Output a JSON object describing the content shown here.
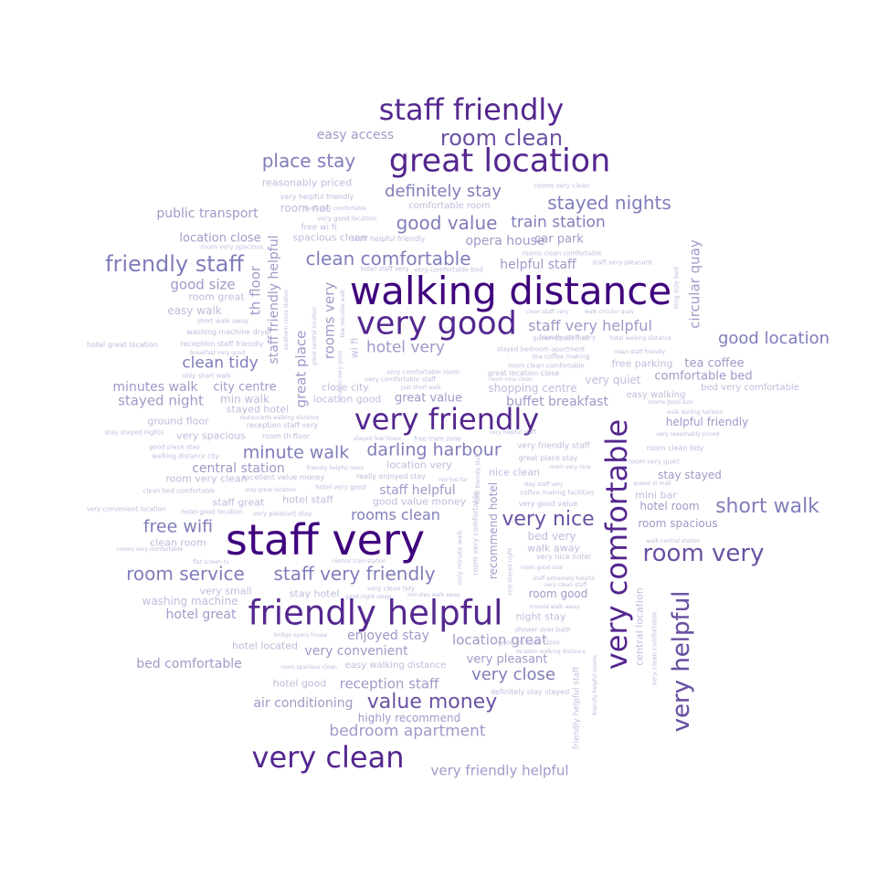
{
  "words": [
    {
      "text": "staff very",
      "weight": 1.0,
      "color": "#3f007d"
    },
    {
      "text": "walking distance",
      "weight": 0.92,
      "color": "#3f007d"
    },
    {
      "text": "friendly helpful",
      "weight": 0.8,
      "color": "#54278f"
    },
    {
      "text": "very good",
      "weight": 0.8,
      "color": "#54278f"
    },
    {
      "text": "great location",
      "weight": 0.78,
      "color": "#54278f"
    },
    {
      "text": "very comfortable",
      "weight": 0.77,
      "color": "#54278f"
    },
    {
      "text": "very clean",
      "weight": 0.72,
      "color": "#54278f"
    },
    {
      "text": "staff friendly",
      "weight": 0.72,
      "color": "#54278f"
    },
    {
      "text": "very friendly",
      "weight": 0.72,
      "color": "#54278f"
    },
    {
      "text": "very helpful",
      "weight": 0.62,
      "color": "#6a51a3"
    },
    {
      "text": "room very",
      "weight": 0.55,
      "color": "#6a51a3"
    },
    {
      "text": "room clean",
      "weight": 0.5,
      "color": "#6a51a3"
    },
    {
      "text": "value money",
      "weight": 0.47,
      "color": "#6a51a3"
    },
    {
      "text": "friendly staff",
      "weight": 0.45,
      "color": "#807dba"
    },
    {
      "text": "short walk",
      "weight": 0.42,
      "color": "#807dba"
    },
    {
      "text": "very nice",
      "weight": 0.42,
      "color": "#6a51a3"
    },
    {
      "text": "staff very friendly",
      "weight": 0.42,
      "color": "#807dba"
    },
    {
      "text": "good value",
      "weight": 0.41,
      "color": "#807dba"
    },
    {
      "text": "stayed nights",
      "weight": 0.41,
      "color": "#807dba"
    },
    {
      "text": "clean comfortable",
      "weight": 0.41,
      "color": "#807dba"
    },
    {
      "text": "room service",
      "weight": 0.39,
      "color": "#807dba"
    },
    {
      "text": "place stay",
      "weight": 0.39,
      "color": "#807dba"
    },
    {
      "text": "darling harbour",
      "weight": 0.39,
      "color": "#807dba"
    },
    {
      "text": "minute walk",
      "weight": 0.38,
      "color": "#807dba"
    },
    {
      "text": "definitely stay",
      "weight": 0.38,
      "color": "#807dba"
    },
    {
      "text": "good location",
      "weight": 0.38,
      "color": "#807dba"
    },
    {
      "text": "free wifi",
      "weight": 0.38,
      "color": "#807dba"
    },
    {
      "text": "very close",
      "weight": 0.36,
      "color": "#807dba"
    },
    {
      "text": "bedroom apartment",
      "weight": 0.36,
      "color": "#9e9ac8"
    },
    {
      "text": "hotel very",
      "weight": 0.35,
      "color": "#9e9ac8"
    },
    {
      "text": "staff very helpful",
      "weight": 0.35,
      "color": "#9e9ac8"
    },
    {
      "text": "train station",
      "weight": 0.35,
      "color": "#807dba"
    },
    {
      "text": "clean tidy",
      "weight": 0.34,
      "color": "#807dba"
    },
    {
      "text": "rooms clean",
      "weight": 0.34,
      "color": "#807dba"
    },
    {
      "text": "very friendly helpful",
      "weight": 0.33,
      "color": "#9e9ac8"
    },
    {
      "text": "reception staff",
      "weight": 0.33,
      "color": "#9e9ac8"
    },
    {
      "text": "stayed night",
      "weight": 0.33,
      "color": "#9e9ac8"
    },
    {
      "text": "great place",
      "weight": 0.33,
      "color": "#9e9ac8"
    },
    {
      "text": "location great",
      "weight": 0.32,
      "color": "#9e9ac8"
    },
    {
      "text": "circular quay",
      "weight": 0.32,
      "color": "#9e9ac8"
    },
    {
      "text": "rooms very",
      "weight": 0.32,
      "color": "#9e9ac8"
    },
    {
      "text": "central station",
      "weight": 0.31,
      "color": "#9e9ac8"
    },
    {
      "text": "hotel great",
      "weight": 0.31,
      "color": "#9e9ac8"
    },
    {
      "text": "staff helpful",
      "weight": 0.31,
      "color": "#9e9ac8"
    },
    {
      "text": "enjoyed stay",
      "weight": 0.31,
      "color": "#9e9ac8"
    },
    {
      "text": "air conditioning",
      "weight": 0.3,
      "color": "#9e9ac8"
    },
    {
      "text": "minutes walk",
      "weight": 0.3,
      "color": "#9e9ac8"
    },
    {
      "text": "good size",
      "weight": 0.3,
      "color": "#9e9ac8"
    },
    {
      "text": "very convenient",
      "weight": 0.3,
      "color": "#9e9ac8"
    },
    {
      "text": "bed comfortable",
      "weight": 0.3,
      "color": "#9e9ac8"
    },
    {
      "text": "public transport",
      "weight": 0.3,
      "color": "#9e9ac8"
    },
    {
      "text": "easy access",
      "weight": 0.3,
      "color": "#9e9ac8"
    },
    {
      "text": "opera house",
      "weight": 0.3,
      "color": "#9e9ac8"
    },
    {
      "text": "very pleasant",
      "weight": 0.29,
      "color": "#9e9ac8"
    },
    {
      "text": "staff friendly helpful",
      "weight": 0.29,
      "color": "#9e9ac8"
    },
    {
      "text": "great value",
      "weight": 0.29,
      "color": "#9e9ac8"
    },
    {
      "text": "buffet breakfast",
      "weight": 0.29,
      "color": "#9e9ac8"
    },
    {
      "text": "very helpful",
      "weight": 0.62,
      "color": "#6a51a3"
    },
    {
      "text": "helpful staff",
      "weight": 0.28,
      "color": "#9e9ac8"
    },
    {
      "text": "city centre",
      "weight": 0.28,
      "color": "#9e9ac8"
    },
    {
      "text": "stay stayed",
      "weight": 0.28,
      "color": "#9e9ac8"
    },
    {
      "text": "tea coffee",
      "weight": 0.28,
      "color": "#9e9ac8"
    },
    {
      "text": "location close",
      "weight": 0.27,
      "color": "#9e9ac8"
    },
    {
      "text": "car park",
      "weight": 0.27,
      "color": "#9e9ac8"
    },
    {
      "text": "recommend hotel",
      "weight": 0.27,
      "color": "#9e9ac8"
    },
    {
      "text": "th floor",
      "weight": 0.27,
      "color": "#9e9ac8"
    },
    {
      "text": "room good",
      "weight": 0.27,
      "color": "#9e9ac8"
    },
    {
      "text": "hotel room",
      "weight": 0.27,
      "color": "#9e9ac8"
    },
    {
      "text": "room spacious",
      "weight": 0.26,
      "color": "#9e9ac8"
    },
    {
      "text": "comfortable bed",
      "weight": 0.26,
      "color": "#9e9ac8"
    },
    {
      "text": "helpful friendly",
      "weight": 0.26,
      "color": "#9e9ac8"
    },
    {
      "text": "highly recommend",
      "weight": 0.26,
      "color": "#9e9ac8"
    },
    {
      "text": "washing machine",
      "weight": 0.25,
      "color": "#bcbddc"
    },
    {
      "text": "easy walk",
      "weight": 0.25,
      "color": "#bcbddc"
    },
    {
      "text": "location very",
      "weight": 0.25,
      "color": "#bcbddc"
    },
    {
      "text": "very quiet",
      "weight": 0.25,
      "color": "#bcbddc"
    },
    {
      "text": "shopping centre",
      "weight": 0.25,
      "color": "#bcbddc"
    },
    {
      "text": "night stay",
      "weight": 0.25,
      "color": "#bcbddc"
    },
    {
      "text": "bed very",
      "weight": 0.25,
      "color": "#bcbddc"
    },
    {
      "text": "walk away",
      "weight": 0.25,
      "color": "#bcbddc"
    },
    {
      "text": "central location",
      "weight": 0.24,
      "color": "#bcbddc"
    },
    {
      "text": "spacious clean",
      "weight": 0.24,
      "color": "#bcbddc"
    },
    {
      "text": "room not",
      "weight": 0.24,
      "color": "#bcbddc"
    },
    {
      "text": "wi fi",
      "weight": 0.24,
      "color": "#bcbddc"
    },
    {
      "text": "very small",
      "weight": 0.24,
      "color": "#bcbddc"
    },
    {
      "text": "stay hotel",
      "weight": 0.24,
      "color": "#bcbddc"
    },
    {
      "text": "nice clean",
      "weight": 0.24,
      "color": "#bcbddc"
    },
    {
      "text": "location good",
      "weight": 0.24,
      "color": "#bcbddc"
    },
    {
      "text": "close city",
      "weight": 0.24,
      "color": "#bcbddc"
    },
    {
      "text": "mini bar",
      "weight": 0.24,
      "color": "#bcbddc"
    },
    {
      "text": "min walk",
      "weight": 0.24,
      "color": "#bcbddc"
    },
    {
      "text": "stayed hotel",
      "weight": 0.24,
      "color": "#bcbddc"
    },
    {
      "text": "hotel staff",
      "weight": 0.24,
      "color": "#bcbddc"
    },
    {
      "text": "hotel located",
      "weight": 0.24,
      "color": "#bcbddc"
    },
    {
      "text": "hotel good",
      "weight": 0.24,
      "color": "#bcbddc"
    },
    {
      "text": "free parking",
      "weight": 0.24,
      "color": "#bcbddc"
    },
    {
      "text": "easy walking",
      "weight": 0.24,
      "color": "#bcbddc"
    },
    {
      "text": "good value money",
      "weight": 0.24,
      "color": "#bcbddc"
    },
    {
      "text": "easy walking distance",
      "weight": 0.24,
      "color": "#bcbddc"
    },
    {
      "text": "reasonably priced",
      "weight": 0.24,
      "color": "#bcbddc"
    },
    {
      "text": "ground floor",
      "weight": 0.24,
      "color": "#bcbddc"
    },
    {
      "text": "very spacious",
      "weight": 0.24,
      "color": "#bcbddc"
    },
    {
      "text": "room great",
      "weight": 0.24,
      "color": "#bcbddc"
    },
    {
      "text": "clean room",
      "weight": 0.24,
      "color": "#bcbddc"
    },
    {
      "text": "room very clean",
      "weight": 0.24,
      "color": "#bcbddc"
    },
    {
      "text": "staff great",
      "weight": 0.24,
      "color": "#bcbddc"
    },
    {
      "text": "very good location",
      "weight": 0.12,
      "color": "#bcbddc"
    },
    {
      "text": "comfortable room",
      "weight": 0.12,
      "color": "#bcbddc"
    },
    {
      "text": "free wi fi",
      "weight": 0.12,
      "color": "#bcbddc"
    },
    {
      "text": "staff helpful friendly",
      "weight": 0.12,
      "color": "#bcbddc"
    },
    {
      "text": "very helpful friendly",
      "weight": 0.12,
      "color": "#bcbddc"
    },
    {
      "text": "rooms very clean",
      "weight": 0.12,
      "color": "#bcbddc"
    },
    {
      "text": "rooms clean comfortable",
      "weight": 0.12,
      "color": "#bcbddc"
    },
    {
      "text": "staff very pleasant",
      "weight": 0.12,
      "color": "#bcbddc"
    },
    {
      "text": "hotel staff very",
      "weight": 0.12,
      "color": "#bcbddc"
    },
    {
      "text": "very comfortable bed",
      "weight": 0.12,
      "color": "#bcbddc"
    },
    {
      "text": "room very spacious",
      "weight": 0.12,
      "color": "#bcbddc"
    },
    {
      "text": "short walk away",
      "weight": 0.12,
      "color": "#bcbddc"
    },
    {
      "text": "washing machine dryer",
      "weight": 0.12,
      "color": "#bcbddc"
    },
    {
      "text": "hotel great location",
      "weight": 0.12,
      "color": "#bcbddc"
    },
    {
      "text": "reception staff friendly",
      "weight": 0.12,
      "color": "#bcbddc"
    },
    {
      "text": "breakfast very good",
      "weight": 0.12,
      "color": "#bcbddc"
    },
    {
      "text": "only short walk",
      "weight": 0.12,
      "color": "#bcbddc"
    },
    {
      "text": "clean staff very",
      "weight": 0.12,
      "color": "#bcbddc"
    },
    {
      "text": "walk circular quay",
      "weight": 0.12,
      "color": "#bcbddc"
    },
    {
      "text": "queen street mall",
      "weight": 0.12,
      "color": "#bcbddc"
    },
    {
      "text": "stayed bedroom apartment",
      "weight": 0.12,
      "color": "#bcbddc"
    },
    {
      "text": "tea coffee making",
      "weight": 0.12,
      "color": "#bcbddc"
    },
    {
      "text": "room clean comfortable",
      "weight": 0.12,
      "color": "#bcbddc"
    },
    {
      "text": "great location close",
      "weight": 0.12,
      "color": "#bcbddc"
    },
    {
      "text": "room nice clean",
      "weight": 0.12,
      "color": "#bcbddc"
    },
    {
      "text": "clean staff friendly",
      "weight": 0.12,
      "color": "#bcbddc"
    },
    {
      "text": "hotel walking distance",
      "weight": 0.12,
      "color": "#bcbddc"
    },
    {
      "text": "bed very comfortable",
      "weight": 0.12,
      "color": "#bcbddc"
    },
    {
      "text": "rooms good size",
      "weight": 0.12,
      "color": "#bcbddc"
    },
    {
      "text": "walk darling harbour",
      "weight": 0.12,
      "color": "#bcbddc"
    },
    {
      "text": "very reasonably priced",
      "weight": 0.12,
      "color": "#bcbddc"
    },
    {
      "text": "room clean tidy",
      "weight": 0.12,
      "color": "#bcbddc"
    },
    {
      "text": "room very quiet",
      "weight": 0.12,
      "color": "#bcbddc"
    },
    {
      "text": "queen st mall",
      "weight": 0.12,
      "color": "#bcbddc"
    },
    {
      "text": "walk central station",
      "weight": 0.12,
      "color": "#bcbddc"
    },
    {
      "text": "very comfortable room",
      "weight": 0.12,
      "color": "#bcbddc"
    },
    {
      "text": "very comfortable staff",
      "weight": 0.12,
      "color": "#bcbddc"
    },
    {
      "text": "just short walk",
      "weight": 0.12,
      "color": "#bcbddc"
    },
    {
      "text": "definitely stay stayed",
      "weight": 0.12,
      "color": "#bcbddc"
    },
    {
      "text": "location walking distance",
      "weight": 0.12,
      "color": "#bcbddc"
    },
    {
      "text": "good location close",
      "weight": 0.12,
      "color": "#bcbddc"
    },
    {
      "text": "very nice hotel",
      "weight": 0.12,
      "color": "#bcbddc"
    },
    {
      "text": "room good size",
      "weight": 0.12,
      "color": "#bcbddc"
    },
    {
      "text": "staff extremely helpful",
      "weight": 0.12,
      "color": "#bcbddc"
    },
    {
      "text": "very clean staff",
      "weight": 0.12,
      "color": "#bcbddc"
    },
    {
      "text": "minute walk away",
      "weight": 0.12,
      "color": "#bcbddc"
    },
    {
      "text": "shower over bath",
      "weight": 0.12,
      "color": "#bcbddc"
    },
    {
      "text": "coffee making facilities",
      "weight": 0.12,
      "color": "#bcbddc"
    },
    {
      "text": "very good value",
      "weight": 0.12,
      "color": "#bcbddc"
    },
    {
      "text": "stay staff very",
      "weight": 0.12,
      "color": "#bcbddc"
    },
    {
      "text": "very friendly staff",
      "weight": 0.12,
      "color": "#bcbddc"
    },
    {
      "text": "great place stay",
      "weight": 0.12,
      "color": "#bcbddc"
    },
    {
      "text": "room very nice",
      "weight": 0.12,
      "color": "#bcbddc"
    },
    {
      "text": "excellent value money",
      "weight": 0.12,
      "color": "#bcbddc"
    },
    {
      "text": "really enjoyed stay",
      "weight": 0.12,
      "color": "#bcbddc"
    },
    {
      "text": "not too far",
      "weight": 0.12,
      "color": "#bcbddc"
    },
    {
      "text": "hotel very good",
      "weight": 0.12,
      "color": "#bcbddc"
    },
    {
      "text": "stay great location",
      "weight": 0.12,
      "color": "#bcbddc"
    },
    {
      "text": "very helpful staff",
      "weight": 0.12,
      "color": "#bcbddc"
    },
    {
      "text": "hotel good location",
      "weight": 0.12,
      "color": "#bcbddc"
    },
    {
      "text": "very pleasant stay",
      "weight": 0.12,
      "color": "#bcbddc"
    },
    {
      "text": "clean bed comfortable",
      "weight": 0.12,
      "color": "#bcbddc"
    },
    {
      "text": "very convenient location",
      "weight": 0.12,
      "color": "#bcbddc"
    },
    {
      "text": "stay stayed nights",
      "weight": 0.12,
      "color": "#bcbddc"
    },
    {
      "text": "good place stay",
      "weight": 0.12,
      "color": "#bcbddc"
    },
    {
      "text": "walking distance city",
      "weight": 0.12,
      "color": "#bcbddc"
    },
    {
      "text": "rooms very comfortable",
      "weight": 0.12,
      "color": "#bcbddc"
    },
    {
      "text": "flat screen tv",
      "weight": 0.12,
      "color": "#bcbddc"
    },
    {
      "text": "central train station",
      "weight": 0.12,
      "color": "#bcbddc"
    },
    {
      "text": "very clean tidy",
      "weight": 0.12,
      "color": "#bcbddc"
    },
    {
      "text": "good night sleep",
      "weight": 0.12,
      "color": "#bcbddc"
    },
    {
      "text": "minutes walk away",
      "weight": 0.12,
      "color": "#bcbddc"
    },
    {
      "text": "bridge opera house",
      "weight": 0.12,
      "color": "#bcbddc"
    },
    {
      "text": "room spacious clean",
      "weight": 0.12,
      "color": "#bcbddc"
    },
    {
      "text": "restaurants walking distance",
      "weight": 0.12,
      "color": "#bcbddc"
    },
    {
      "text": "reception staff very",
      "weight": 0.12,
      "color": "#bcbddc"
    },
    {
      "text": "room th floor",
      "weight": 0.12,
      "color": "#bcbddc"
    },
    {
      "text": "stayed few times",
      "weight": 0.12,
      "color": "#bcbddc"
    },
    {
      "text": "free tram zone",
      "weight": 0.12,
      "color": "#bcbddc"
    },
    {
      "text": "friendly helpful room",
      "weight": 0.12,
      "color": "#bcbddc"
    },
    {
      "text": "beds very comfortable",
      "weight": 0.12,
      "color": "#bcbddc"
    },
    {
      "text": "few minutes walk",
      "weight": 0.12,
      "color": "#bcbddc"
    },
    {
      "text": "southern cross station",
      "weight": 0.12,
      "color": "#bcbddc"
    },
    {
      "text": "great central location",
      "weight": 0.12,
      "color": "#bcbddc"
    },
    {
      "text": "location very good",
      "weight": 0.12,
      "color": "#bcbddc"
    },
    {
      "text": "friendly staff very",
      "weight": 0.12,
      "color": "#bcbddc"
    },
    {
      "text": "king size bed",
      "weight": 0.12,
      "color": "#bcbddc"
    },
    {
      "text": "very clean comfortable",
      "weight": 0.12,
      "color": "#bcbddc"
    },
    {
      "text": "friendly helpful rooms",
      "weight": 0.12,
      "color": "#bcbddc"
    },
    {
      "text": "friendly helpful staff",
      "weight": 0.12,
      "color": "#bcbddc"
    },
    {
      "text": "only minute walk",
      "weight": 0.12,
      "color": "#bcbddc"
    },
    {
      "text": "room very comfortable",
      "weight": 0.12,
      "color": "#bcbddc"
    },
    {
      "text": "only stayed night",
      "weight": 0.12,
      "color": "#bcbddc"
    },
    {
      "text": "hotel friendly staff",
      "weight": 0.12,
      "color": "#bcbddc"
    }
  ]
}
